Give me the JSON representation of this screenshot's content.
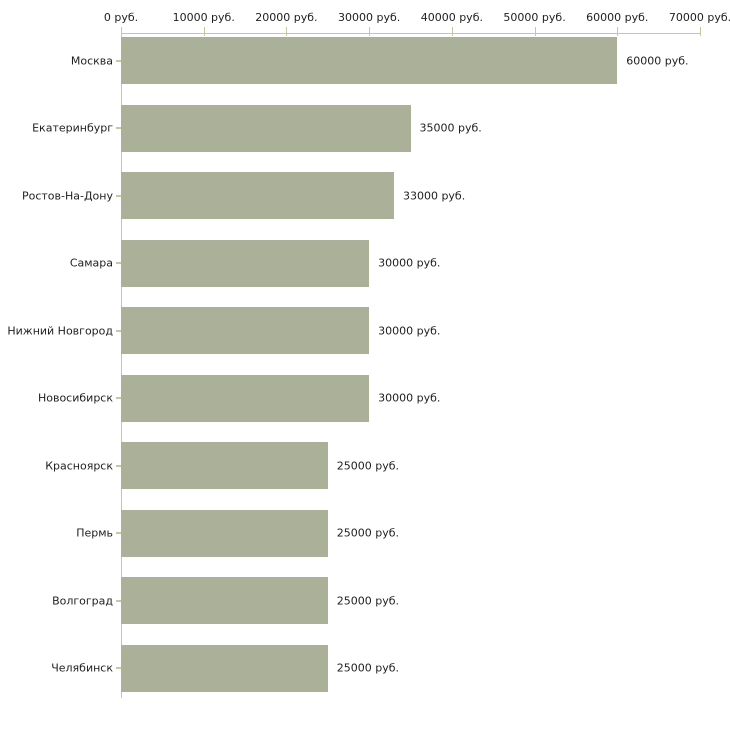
{
  "chart_data": {
    "type": "bar",
    "orientation": "horizontal",
    "title": "",
    "xlabel": "",
    "ylabel": "",
    "xlim": [
      0,
      70000
    ],
    "grid": false,
    "legend": null,
    "x_tick_labels": [
      "0 руб.",
      "10000 руб.",
      "20000 руб.",
      "30000 руб.",
      "40000 руб.",
      "50000 руб.",
      "60000 руб.",
      "70000 руб."
    ],
    "x_tick_values": [
      0,
      10000,
      20000,
      30000,
      40000,
      50000,
      60000,
      70000
    ],
    "categories": [
      "Москва",
      "Екатеринбург",
      "Ростов-На-Дону",
      "Самара",
      "Нижний Новгород",
      "Новосибирск",
      "Красноярск",
      "Пермь",
      "Волгоград",
      "Челябинск"
    ],
    "values": [
      60000,
      35000,
      33000,
      30000,
      30000,
      30000,
      25000,
      25000,
      25000,
      25000
    ],
    "value_labels": [
      "60000 руб.",
      "35000 руб.",
      "33000 руб.",
      "30000 руб.",
      "30000 руб.",
      "30000 руб.",
      "25000 руб.",
      "25000 руб.",
      "25000 руб.",
      "25000 руб."
    ],
    "colors": {
      "bar_fill": "#abb099",
      "axis_line": "#c2c2c2",
      "tick_mark": "#c9c79c",
      "text": "#1f1f1f",
      "background": "#ffffff"
    }
  }
}
